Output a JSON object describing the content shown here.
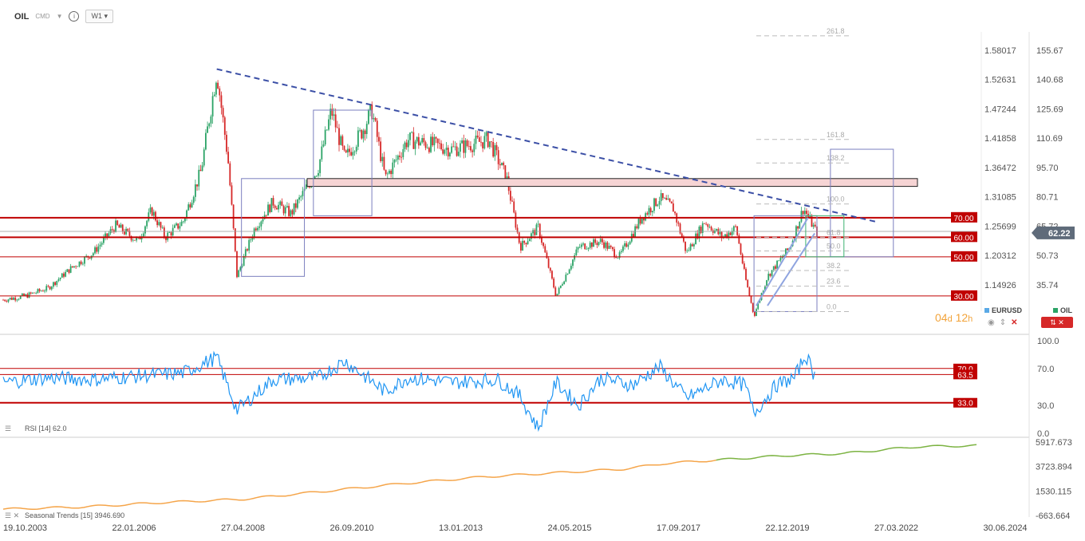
{
  "header": {
    "symbol": "OIL",
    "type": "CMD",
    "timeframe": "W1",
    "info_icon": "info-icon"
  },
  "timer": {
    "days": "04",
    "days_unit": "d",
    "hours": "12",
    "hours_unit": "h"
  },
  "legend": {
    "eurusd": "EURUSD",
    "oil": "OIL",
    "eurusd_color": "#5aa9e6",
    "oil_color": "#2ba366"
  },
  "current_price": "62.22",
  "colors": {
    "candle_up": "#2ba366",
    "candle_down": "#d62828",
    "level": "#c00000",
    "trend": "#3b4fa6",
    "rsi": "#2196f3",
    "seasonal_orange": "#f5a54a",
    "seasonal_green": "#7cb342",
    "grid": "#e6e6e6"
  },
  "chart_data": [
    {
      "type": "candlestick",
      "symbol": "OIL",
      "timeframe": "W1",
      "x_tick_labels": [
        "19.10.2003",
        "22.01.2006",
        "27.04.2008",
        "26.09.2010",
        "13.01.2013",
        "24.05.2015",
        "17.09.2017",
        "22.12.2019",
        "27.03.2022",
        "30.06.2024"
      ],
      "y_axis_right": [
        "155.67",
        "140.68",
        "125.69",
        "110.69",
        "95.70",
        "80.71",
        "65.72",
        "50.73",
        "35.74"
      ],
      "y_axis_left": [
        "1.58017",
        "1.52631",
        "1.47244",
        "1.41858",
        "1.36472",
        "1.31085",
        "1.25699",
        "1.20312",
        "1.14926"
      ],
      "ylim": [
        23,
        165
      ],
      "current_price": 62.22,
      "close_series": [
        {
          "t": 0,
          "v": 28
        },
        {
          "t": 0.5,
          "v": 30
        },
        {
          "t": 1.0,
          "v": 34
        },
        {
          "t": 1.5,
          "v": 44
        },
        {
          "t": 2.0,
          "v": 52
        },
        {
          "t": 2.5,
          "v": 66
        },
        {
          "t": 3.0,
          "v": 58
        },
        {
          "t": 3.3,
          "v": 74
        },
        {
          "t": 3.6,
          "v": 60
        },
        {
          "t": 4.0,
          "v": 68
        },
        {
          "t": 4.4,
          "v": 94
        },
        {
          "t": 4.75,
          "v": 145
        },
        {
          "t": 5.0,
          "v": 100
        },
        {
          "t": 5.2,
          "v": 40
        },
        {
          "t": 5.6,
          "v": 65
        },
        {
          "t": 6.0,
          "v": 78
        },
        {
          "t": 6.4,
          "v": 72
        },
        {
          "t": 7.0,
          "v": 95
        },
        {
          "t": 7.3,
          "v": 125
        },
        {
          "t": 7.6,
          "v": 100
        },
        {
          "t": 8.0,
          "v": 115
        },
        {
          "t": 8.2,
          "v": 125
        },
        {
          "t": 8.5,
          "v": 90
        },
        {
          "t": 9.0,
          "v": 110
        },
        {
          "t": 10.0,
          "v": 105
        },
        {
          "t": 10.8,
          "v": 110
        },
        {
          "t": 11.2,
          "v": 90
        },
        {
          "t": 11.5,
          "v": 55
        },
        {
          "t": 11.9,
          "v": 65
        },
        {
          "t": 12.3,
          "v": 30
        },
        {
          "t": 12.8,
          "v": 55
        },
        {
          "t": 13.3,
          "v": 58
        },
        {
          "t": 13.7,
          "v": 50
        },
        {
          "t": 14.2,
          "v": 70
        },
        {
          "t": 14.6,
          "v": 80
        },
        {
          "t": 14.9,
          "v": 75
        },
        {
          "t": 15.2,
          "v": 52
        },
        {
          "t": 15.6,
          "v": 68
        },
        {
          "t": 16.0,
          "v": 60
        },
        {
          "t": 16.3,
          "v": 65
        },
        {
          "t": 16.5,
          "v": 40
        },
        {
          "t": 16.7,
          "v": 20
        },
        {
          "t": 17.0,
          "v": 40
        },
        {
          "t": 17.5,
          "v": 55
        },
        {
          "t": 17.8,
          "v": 75
        },
        {
          "t": 18.1,
          "v": 62
        }
      ],
      "horizontal_levels": [
        {
          "label": "70.00",
          "value": 70
        },
        {
          "label": "60.00",
          "value": 60
        },
        {
          "label": "50.00",
          "value": 50
        },
        {
          "label": "30.00",
          "value": 30
        }
      ],
      "fibonacci_labels": [
        "261.8",
        "161.8",
        "138.2",
        "100.0",
        "61.8",
        "50.0",
        "38.2",
        "23.6",
        "0.0"
      ],
      "fibonacci_values": [
        163,
        110,
        98,
        77,
        60,
        53,
        43,
        35,
        22
      ]
    },
    {
      "type": "line",
      "name": "RSI [14]",
      "value_label": "62.0",
      "ylim": [
        0,
        100
      ],
      "y_tick_labels": [
        "100.0",
        "70.0",
        "30.0",
        "0.0"
      ],
      "levels": [
        {
          "label": "70.0",
          "value": 70
        },
        {
          "label": "63.5",
          "value": 63.5
        },
        {
          "label": "33.0",
          "value": 33
        }
      ],
      "points": [
        {
          "t": 0,
          "v": 55
        },
        {
          "t": 1,
          "v": 60
        },
        {
          "t": 2,
          "v": 58
        },
        {
          "t": 3,
          "v": 62
        },
        {
          "t": 4,
          "v": 65
        },
        {
          "t": 4.75,
          "v": 82
        },
        {
          "t": 5.2,
          "v": 25
        },
        {
          "t": 6,
          "v": 58
        },
        {
          "t": 7,
          "v": 60
        },
        {
          "t": 7.6,
          "v": 78
        },
        {
          "t": 8.5,
          "v": 45
        },
        {
          "t": 9,
          "v": 60
        },
        {
          "t": 10,
          "v": 55
        },
        {
          "t": 11,
          "v": 58
        },
        {
          "t": 11.5,
          "v": 40
        },
        {
          "t": 11.9,
          "v": 5
        },
        {
          "t": 12.3,
          "v": 55
        },
        {
          "t": 12.8,
          "v": 30
        },
        {
          "t": 13.3,
          "v": 60
        },
        {
          "t": 14,
          "v": 52
        },
        {
          "t": 14.6,
          "v": 72
        },
        {
          "t": 15.2,
          "v": 38
        },
        {
          "t": 16,
          "v": 58
        },
        {
          "t": 16.5,
          "v": 52
        },
        {
          "t": 16.7,
          "v": 22
        },
        {
          "t": 17.2,
          "v": 52
        },
        {
          "t": 17.6,
          "v": 60
        },
        {
          "t": 17.85,
          "v": 85
        },
        {
          "t": 18.05,
          "v": 62
        }
      ]
    },
    {
      "type": "line",
      "name": "Seasonal Trends [15]",
      "value_label": "3946.690",
      "y_tick_labels": [
        "5917.673",
        "3723.894",
        "1530.115",
        "-663.664"
      ],
      "ylim": [
        -663.664,
        5917.673
      ],
      "points": [
        {
          "t": 0,
          "v": -100
        },
        {
          "t": 2,
          "v": 100
        },
        {
          "t": 4,
          "v": 500
        },
        {
          "t": 6,
          "v": 800
        },
        {
          "t": 8,
          "v": 1500
        },
        {
          "t": 10,
          "v": 2200
        },
        {
          "t": 12,
          "v": 2800
        },
        {
          "t": 14,
          "v": 3200
        },
        {
          "t": 15.5,
          "v": 3500
        },
        {
          "t": 16.5,
          "v": 4000
        },
        {
          "t": 17.8,
          "v": 4300
        },
        {
          "t": 19.5,
          "v": 4700
        },
        {
          "t": 21,
          "v": 4900
        },
        {
          "t": 22.8,
          "v": 5500
        },
        {
          "t": 24.3,
          "v": 5600
        }
      ],
      "forecast_from_t": 17.8
    }
  ]
}
